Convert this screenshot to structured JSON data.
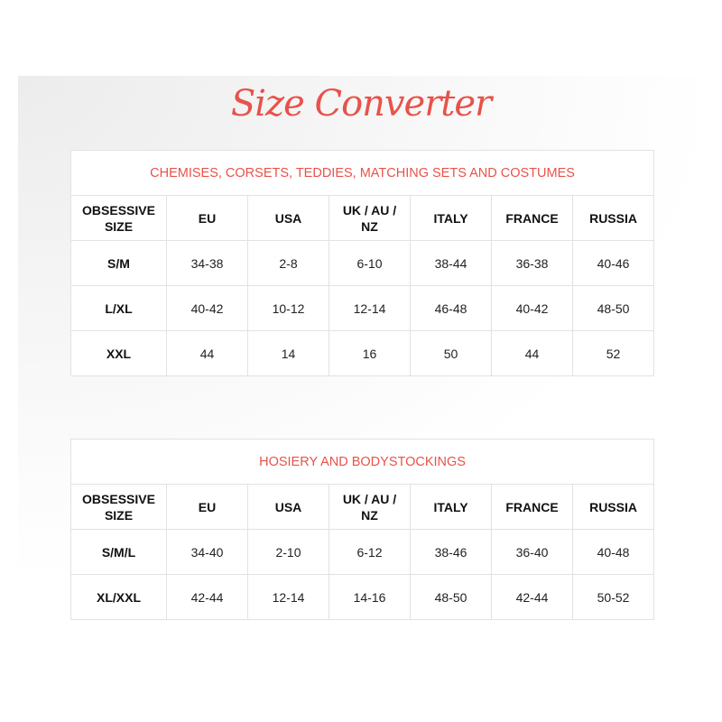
{
  "title": "Size Converter",
  "colors": {
    "accent": "#e8524a"
  },
  "columns": [
    "OBSESSIVE SIZE",
    "EU",
    "USA",
    "UK / AU / NZ",
    "ITALY",
    "FRANCE",
    "RUSSIA"
  ],
  "tables": [
    {
      "caption": "CHEMISES, CORSETS, TEDDIES, MATCHING SETS AND COSTUMES",
      "rows": [
        [
          "S/M",
          "34-38",
          "2-8",
          "6-10",
          "38-44",
          "36-38",
          "40-46"
        ],
        [
          "L/XL",
          "40-42",
          "10-12",
          "12-14",
          "46-48",
          "40-42",
          "48-50"
        ],
        [
          "XXL",
          "44",
          "14",
          "16",
          "50",
          "44",
          "52"
        ]
      ]
    },
    {
      "caption": "HOSIERY AND BODYSTOCKINGS",
      "rows": [
        [
          "S/M/L",
          "34-40",
          "2-10",
          "6-12",
          "38-46",
          "36-40",
          "40-48"
        ],
        [
          "XL/XXL",
          "42-44",
          "12-14",
          "14-16",
          "48-50",
          "42-44",
          "50-52"
        ]
      ]
    }
  ]
}
